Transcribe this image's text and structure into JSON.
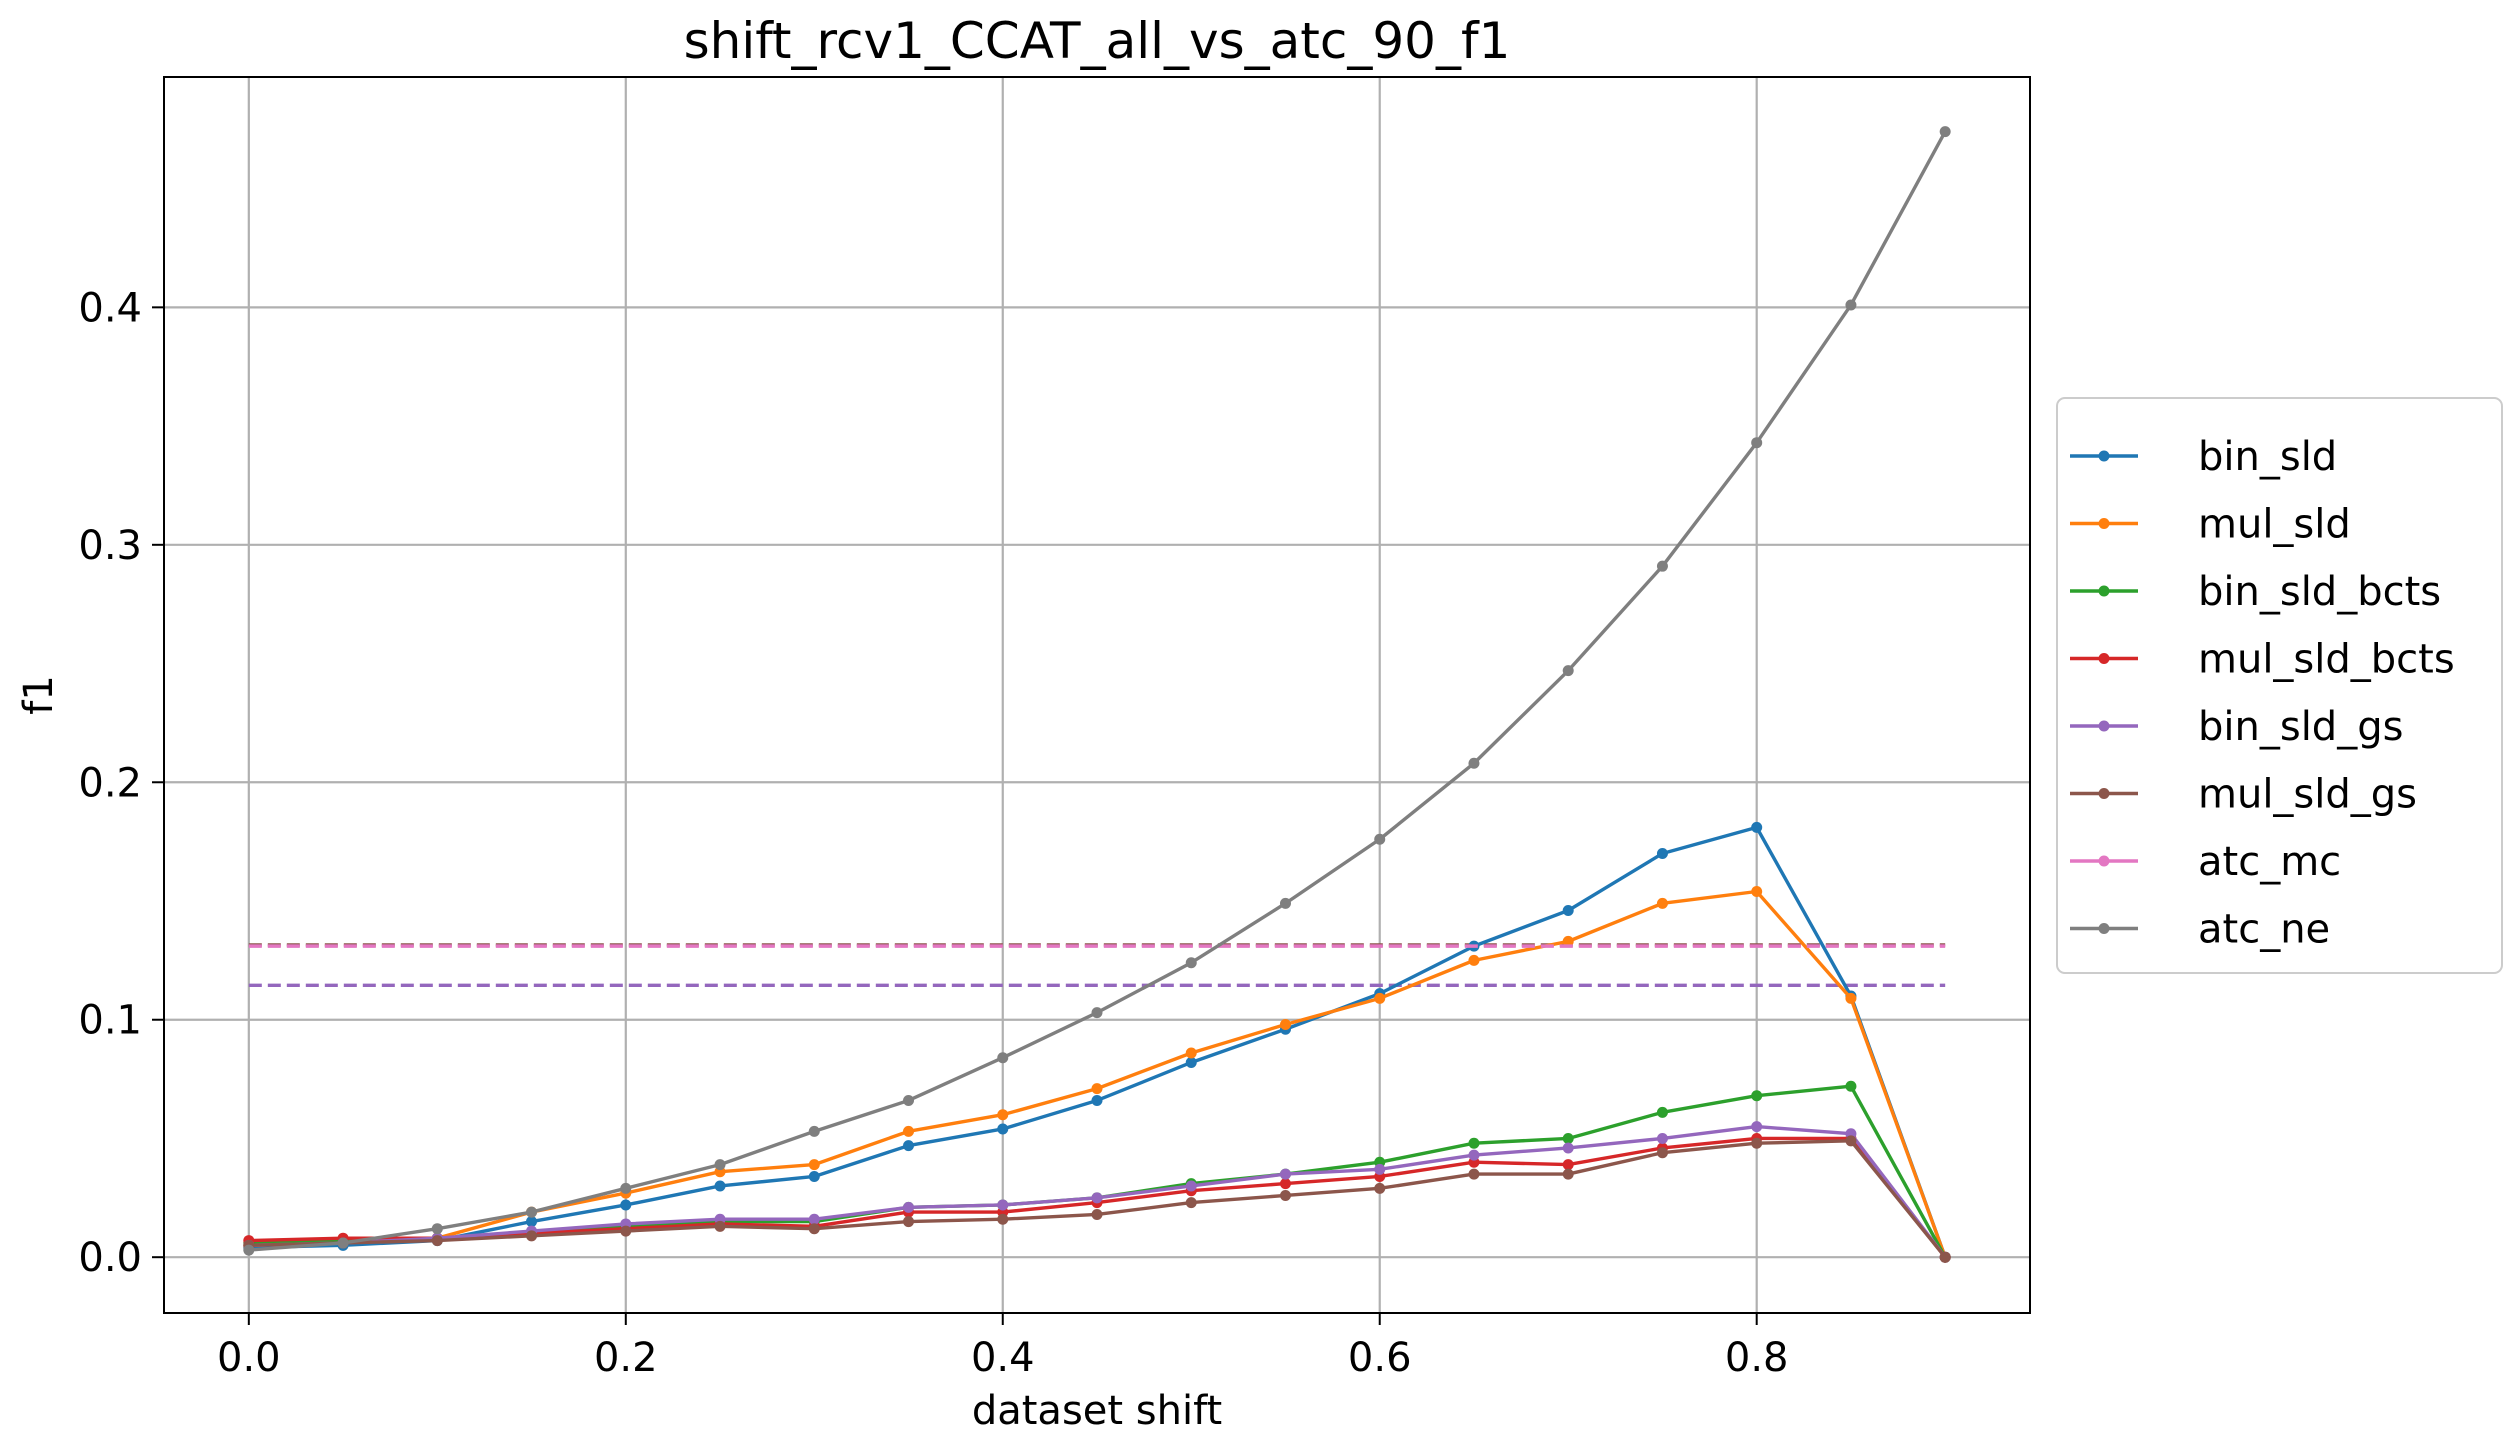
{
  "chart_data": {
    "type": "line",
    "title": "shift_rcv1_CCAT_all_vs_atc_90_f1",
    "xlabel": "dataset shift",
    "ylabel": "f1",
    "xlim": [
      -0.045,
      0.945
    ],
    "ylim": [
      -0.0235,
      0.497
    ],
    "xticks": [
      0.0,
      0.2,
      0.4,
      0.6,
      0.8
    ],
    "xtick_labels": [
      "0.0",
      "0.2",
      "0.4",
      "0.6",
      "0.8"
    ],
    "yticks": [
      0.0,
      0.1,
      0.2,
      0.3,
      0.4
    ],
    "ytick_labels": [
      "0.0",
      "0.1",
      "0.2",
      "0.3",
      "0.4"
    ],
    "grid": true,
    "legend_position": "outside-right",
    "x": [
      0.0,
      0.05,
      0.1,
      0.15,
      0.2,
      0.25,
      0.3,
      0.35,
      0.4,
      0.45,
      0.5,
      0.55,
      0.6,
      0.65,
      0.7,
      0.75,
      0.8,
      0.85,
      0.9
    ],
    "series": [
      {
        "name": "bin_sld",
        "color": "#1f77b4",
        "values": [
          0.004,
          0.005,
          0.007,
          0.015,
          0.022,
          0.03,
          0.034,
          0.047,
          0.054,
          0.066,
          0.082,
          0.096,
          0.111,
          0.131,
          0.146,
          0.17,
          0.181,
          0.11,
          0.0
        ]
      },
      {
        "name": "mul_sld",
        "color": "#ff7f0e",
        "values": [
          0.005,
          0.006,
          0.008,
          0.019,
          0.027,
          0.036,
          0.039,
          0.053,
          0.06,
          0.071,
          0.086,
          0.098,
          0.109,
          0.125,
          0.133,
          0.149,
          0.154,
          0.109,
          0.0
        ]
      },
      {
        "name": "bin_sld_bcts",
        "color": "#2ca02c",
        "values": [
          0.006,
          0.007,
          0.008,
          0.01,
          0.013,
          0.015,
          0.015,
          0.021,
          0.022,
          0.025,
          0.031,
          0.035,
          0.04,
          0.048,
          0.05,
          0.061,
          0.068,
          0.072,
          0.0
        ]
      },
      {
        "name": "mul_sld_bcts",
        "color": "#d62728",
        "values": [
          0.007,
          0.008,
          0.008,
          0.01,
          0.012,
          0.014,
          0.013,
          0.019,
          0.019,
          0.023,
          0.028,
          0.031,
          0.034,
          0.04,
          0.039,
          0.046,
          0.05,
          0.05,
          0.0
        ]
      },
      {
        "name": "bin_sld_gs",
        "color": "#9467bd",
        "values": [
          0.005,
          0.006,
          0.008,
          0.011,
          0.014,
          0.016,
          0.016,
          0.021,
          0.022,
          0.025,
          0.03,
          0.035,
          0.037,
          0.043,
          0.046,
          0.05,
          0.055,
          0.052,
          0.0
        ]
      },
      {
        "name": "mul_sld_gs",
        "color": "#8c564b",
        "values": [
          0.005,
          0.006,
          0.007,
          0.009,
          0.011,
          0.013,
          0.012,
          0.015,
          0.016,
          0.018,
          0.023,
          0.026,
          0.029,
          0.035,
          0.035,
          0.044,
          0.048,
          0.049,
          0.0
        ]
      },
      {
        "name": "atc_mc",
        "color": "#e377c2",
        "values": [
          0.131,
          0.131,
          0.131,
          0.131,
          0.131,
          0.131,
          0.131,
          0.131,
          0.131,
          0.131,
          0.131,
          0.131,
          0.131,
          0.131,
          0.131,
          0.131,
          0.131,
          0.131,
          0.131
        ],
        "dashed": true,
        "markers": false,
        "in_legend": false
      },
      {
        "name": "atc_ne",
        "color": "#7f7f7f",
        "values": [
          0.003,
          0.006,
          0.012,
          0.019,
          0.029,
          0.039,
          0.053,
          0.066,
          0.084,
          0.103,
          0.124,
          0.149,
          0.176,
          0.208,
          0.247,
          0.291,
          0.343,
          0.401,
          0.474
        ]
      }
    ],
    "legend": [
      {
        "name": "bin_sld",
        "color": "#1f77b4"
      },
      {
        "name": "mul_sld",
        "color": "#ff7f0e"
      },
      {
        "name": "bin_sld_bcts",
        "color": "#2ca02c"
      },
      {
        "name": "mul_sld_bcts",
        "color": "#d62728"
      },
      {
        "name": "bin_sld_gs",
        "color": "#9467bd"
      },
      {
        "name": "mul_sld_gs",
        "color": "#8c564b"
      },
      {
        "name": "atc_mc",
        "color": "#e377c2"
      },
      {
        "name": "atc_ne",
        "color": "#7f7f7f"
      }
    ],
    "reference_lines": [
      {
        "color": "#8c564b",
        "y": 0.1315,
        "style": "dashed"
      },
      {
        "color": "#9467bd",
        "y": 0.1145,
        "style": "dashed"
      }
    ]
  }
}
